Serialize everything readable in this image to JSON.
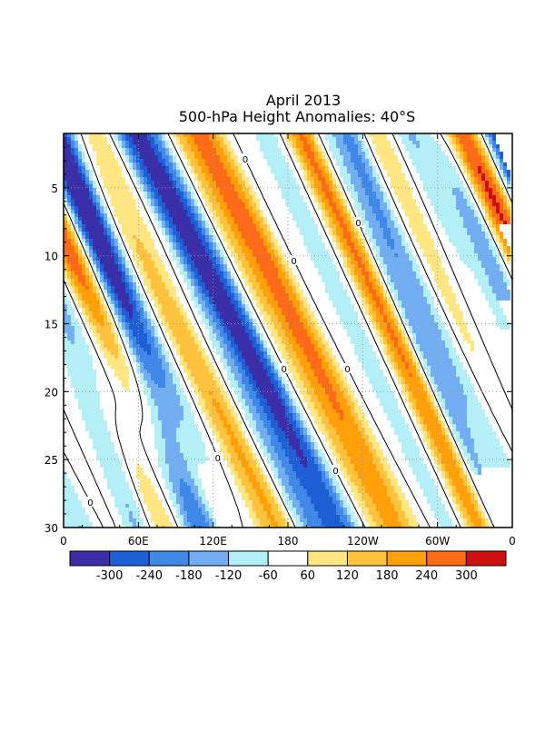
{
  "chart_data": {
    "type": "heatmap",
    "title": "April 2013",
    "subtitle": "500-hPa Height Anomalies: 40°S",
    "x_ticks": [
      "0",
      "60E",
      "120E",
      "180",
      "120W",
      "60W",
      "0"
    ],
    "y_ticks": [
      "5",
      "10",
      "15",
      "20",
      "25",
      "30"
    ],
    "x_range_deg_east": [
      0,
      360
    ],
    "y_range_day": [
      1,
      30
    ],
    "grid": "dotted",
    "colorbar": {
      "labels": [
        "-300",
        "-240",
        "-180",
        "-120",
        "-60",
        "60",
        "120",
        "180",
        "240",
        "300"
      ],
      "colors": [
        "#3a2fa8",
        "#1f5fd6",
        "#3f88e8",
        "#73aef2",
        "#b4eef6",
        "#ffffff",
        "#ffe682",
        "#ffc23c",
        "#ffa00a",
        "#ff6a18",
        "#cf0f0f"
      ]
    },
    "contour_label": "0",
    "bands": [
      {
        "sign": 1,
        "day0": 1,
        "lon0": 105,
        "slope": 6,
        "amp": 110,
        "w": 12
      },
      {
        "sign": -1,
        "day0": 1,
        "lon0": 55,
        "slope": 6,
        "amp": 190,
        "w": 12
      },
      {
        "sign": 1,
        "day0": 1,
        "lon0": 10,
        "slope": 6,
        "amp": 70,
        "w": 11
      },
      {
        "sign": -1,
        "day0": 3,
        "lon0": 30,
        "slope": 6,
        "amp": 110,
        "w": 10
      },
      {
        "sign": -1,
        "day0": 7,
        "lon0": 15,
        "slope": 4,
        "amp": 200,
        "w": 10
      },
      {
        "sign": 1,
        "day0": 9,
        "lon0": 0,
        "slope": 5,
        "amp": 150,
        "w": 10
      },
      {
        "sign": 1,
        "day0": 10,
        "lon0": 70,
        "slope": 5,
        "amp": 170,
        "w": 13
      },
      {
        "sign": -1,
        "day0": 11,
        "lon0": 40,
        "slope": 4,
        "amp": 120,
        "w": 10
      },
      {
        "sign": -1,
        "day0": 16,
        "lon0": 5,
        "slope": 4,
        "amp": 200,
        "w": 10
      },
      {
        "sign": 1,
        "day0": 19,
        "lon0": 65,
        "slope": 6,
        "amp": 170,
        "w": 12
      },
      {
        "sign": -1,
        "day0": 24,
        "lon0": 65,
        "slope": 6,
        "amp": 170,
        "w": 13
      },
      {
        "sign": 1,
        "day0": 27,
        "lon0": 5,
        "slope": 5,
        "amp": 110,
        "w": 11
      },
      {
        "sign": -1,
        "day0": 14,
        "lon0": 140,
        "slope": 5,
        "amp": 90,
        "w": 11
      },
      {
        "sign": -1,
        "day0": 21,
        "lon0": 160,
        "slope": 5,
        "amp": 140,
        "w": 14
      },
      {
        "sign": -1,
        "day0": 27,
        "lon0": 122,
        "slope": 5,
        "amp": 140,
        "w": 11
      },
      {
        "sign": 1,
        "day0": 4,
        "lon0": 198,
        "slope": 5,
        "amp": 180,
        "w": 14
      },
      {
        "sign": -1,
        "day0": 3,
        "lon0": 235,
        "slope": 4,
        "amp": 90,
        "w": 9
      },
      {
        "sign": -1,
        "day0": 11,
        "lon0": 185,
        "slope": 5,
        "amp": 90,
        "w": 11
      },
      {
        "sign": 1,
        "day0": 15,
        "lon0": 160,
        "slope": 5,
        "amp": 90,
        "w": 14
      },
      {
        "sign": 1,
        "day0": 22,
        "lon0": 225,
        "slope": 5,
        "amp": 170,
        "w": 14
      },
      {
        "sign": -1,
        "day0": 16,
        "lon0": 248,
        "slope": 5,
        "amp": 230,
        "w": 13
      },
      {
        "sign": 1,
        "day0": 20,
        "lon0": 290,
        "slope": 5,
        "amp": 240,
        "w": 15
      },
      {
        "sign": -1,
        "day0": 18,
        "lon0": 312,
        "slope": 5,
        "amp": 130,
        "w": 13
      },
      {
        "sign": 1,
        "day0": 4,
        "lon0": 262,
        "slope": 5,
        "amp": 160,
        "w": 12
      },
      {
        "sign": -1,
        "day0": 6,
        "lon0": 298,
        "slope": 4,
        "amp": 90,
        "w": 11
      },
      {
        "sign": 1,
        "day0": 9,
        "lon0": 335,
        "slope": 5,
        "amp": 200,
        "w": 14
      },
      {
        "sign": -1,
        "day0": 24,
        "lon0": 350,
        "slope": 5,
        "amp": 160,
        "w": 11
      },
      {
        "sign": -1,
        "day0": 29,
        "lon0": 345,
        "slope": 5,
        "amp": 210,
        "w": 8
      }
    ]
  }
}
